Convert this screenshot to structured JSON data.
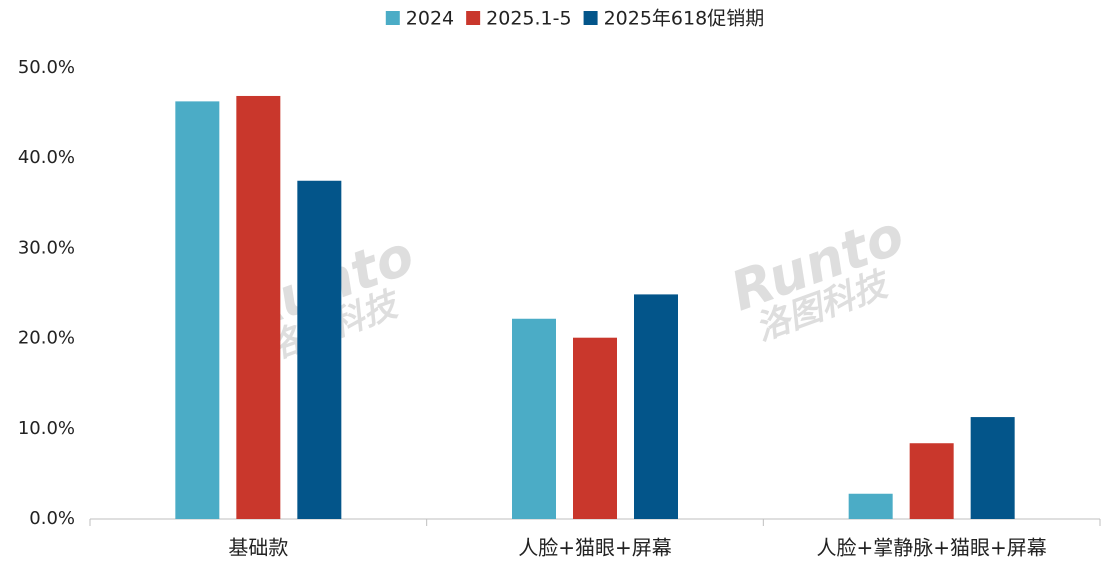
{
  "chart_data": {
    "type": "bar",
    "categories": [
      "基础款",
      "人脸+猫眼+屏幕",
      "人脸+掌静脉+猫眼+屏幕"
    ],
    "series": [
      {
        "name": "2024",
        "color": "#4bacc6",
        "values": [
          46.3,
          22.2,
          2.8
        ]
      },
      {
        "name": "2025.1-5",
        "color": "#c9372c",
        "values": [
          46.9,
          20.1,
          8.4
        ]
      },
      {
        "name": "2025年618促销期",
        "color": "#03558a",
        "values": [
          37.5,
          24.9,
          11.3
        ]
      }
    ],
    "ylim": [
      0,
      50
    ],
    "yticks": [
      {
        "value": 0,
        "label": "0.0%"
      },
      {
        "value": 10,
        "label": "10.0%"
      },
      {
        "value": 20,
        "label": "20.0%"
      },
      {
        "value": 30,
        "label": "30.0%"
      },
      {
        "value": 40,
        "label": "40.0%"
      },
      {
        "value": 50,
        "label": "50.0%"
      }
    ],
    "legend": "top",
    "watermark": {
      "brand": "Runto",
      "name": "洛图科技"
    }
  }
}
